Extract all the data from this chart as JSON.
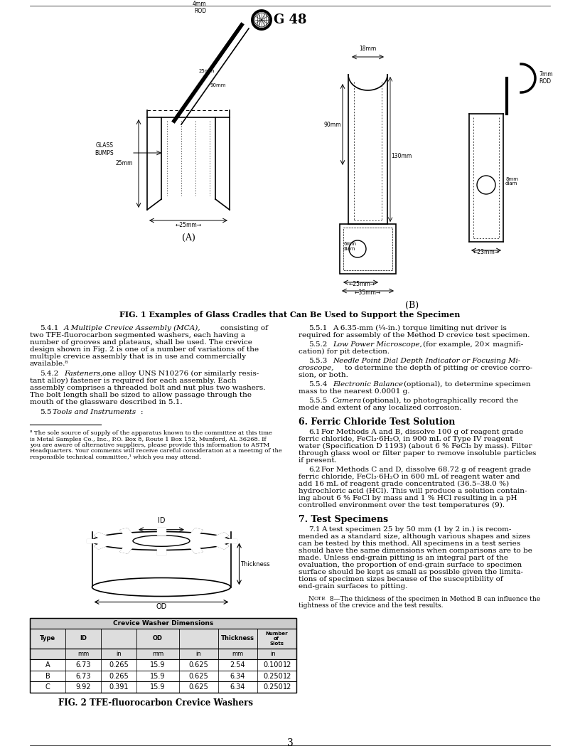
{
  "title": "G 48",
  "page_number": "3",
  "fig1_caption": "FIG. 1 Examples of Glass Cradles that Can Be Used to Support the Specimen",
  "fig2_caption": "FIG. 2 TFE-fluorocarbon Crevice Washers",
  "table_header1": "Crevice Washer Dimensions",
  "table_rows": [
    [
      "A",
      "6.73",
      "0.265",
      "15.9",
      "0.625",
      "2.54",
      "0.100",
      "12"
    ],
    [
      "B",
      "6.73",
      "0.265",
      "15.9",
      "0.625",
      "6.34",
      "0.250",
      "12"
    ],
    [
      "C",
      "9.92",
      "0.391",
      "15.9",
      "0.625",
      "6.34",
      "0.250",
      "12"
    ]
  ],
  "section_6_title": "6. Ferric Chloride Test Solution",
  "section_7_title": "7. Test Specimens",
  "note_8": "NOTE 8—The thickness of the specimen in Method B can influence the tightness of the crevice and the test results.",
  "background_color": "#ffffff"
}
